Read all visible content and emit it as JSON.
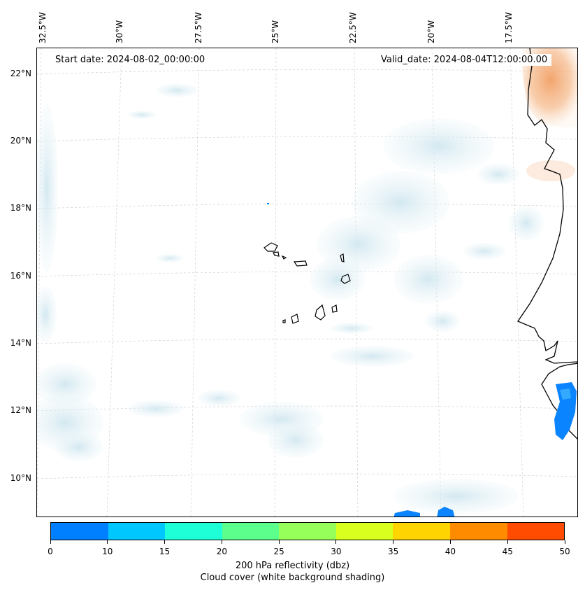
{
  "map": {
    "start_date": "Start date: 2024-08-02_00:00:00",
    "valid_date": "Valid_date: 2024-08-04T12:00:00.00",
    "longitude_labels": [
      "32.5°W",
      "30°W",
      "27.5°W",
      "25°W",
      "22.5°W",
      "20°W",
      "17.5°W"
    ],
    "latitude_labels": [
      "22°N",
      "20°N",
      "18°N",
      "16°N",
      "14°N",
      "12°N",
      "10°N"
    ]
  },
  "colorbar": {
    "ticks": [
      "0",
      "10",
      "15",
      "20",
      "25",
      "30",
      "35",
      "40",
      "45",
      "50"
    ],
    "colors": [
      "#0080ff",
      "#00c8ff",
      "#1effd8",
      "#5cff8c",
      "#96ff5a",
      "#d8ff1e",
      "#ffd400",
      "#ff8c00",
      "#ff4c00"
    ],
    "label": "200 hPa reflectivity (dbz)",
    "sublabel": "Cloud cover (white background shading)"
  },
  "colors": {
    "cloud": "#d6ebf2",
    "high_reflectivity": "#f5a46a",
    "low_reflectivity": "#0a84ff"
  }
}
